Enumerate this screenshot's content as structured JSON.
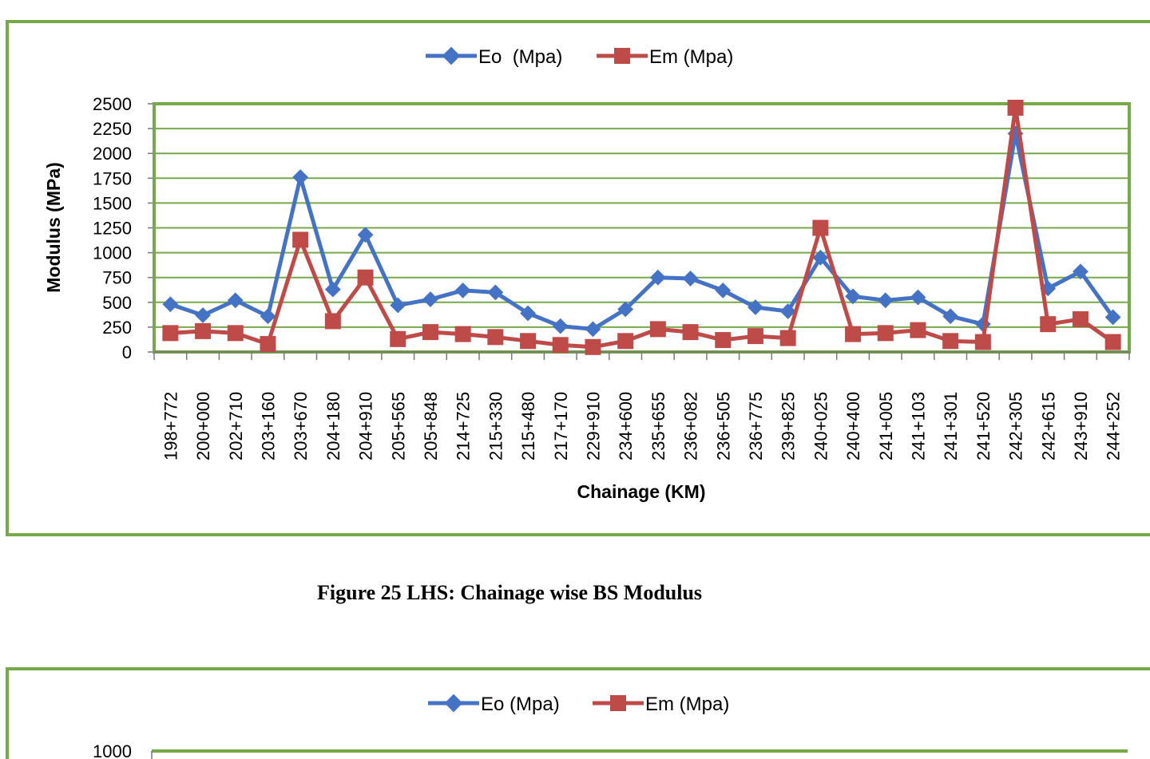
{
  "caption": "Figure 25 LHS:  Chainage wise BS Modulus",
  "colors": {
    "eo": "#4472C4",
    "em": "#BE4B48",
    "border": "#77A84A",
    "grid": "#77A84A"
  },
  "chart_data": [
    {
      "type": "line",
      "title": "",
      "xlabel": "Chainage (KM)",
      "ylabel": "Modulus (MPa)",
      "ylim": [
        0,
        2500
      ],
      "yticks": [
        0,
        250,
        500,
        750,
        1000,
        1250,
        1500,
        1750,
        2000,
        2250,
        2500
      ],
      "legend_position": "top-center",
      "grid": true,
      "categories": [
        "198+772",
        "200+000",
        "202+710",
        "203+160",
        "203+670",
        "204+180",
        "204+910",
        "205+565",
        "205+848",
        "214+725",
        "215+330",
        "215+480",
        "217+170",
        "229+910",
        "234+600",
        "235+655",
        "236+082",
        "236+505",
        "236+775",
        "239+825",
        "240+025",
        "240+400",
        "241+005",
        "241+103",
        "241+301",
        "241+520",
        "242+305",
        "242+615",
        "243+910",
        "244+252"
      ],
      "series": [
        {
          "name": "Eo  (Mpa)",
          "marker": "diamond",
          "values": [
            480,
            370,
            520,
            360,
            1760,
            630,
            1180,
            470,
            530,
            620,
            600,
            390,
            260,
            230,
            430,
            750,
            740,
            620,
            450,
            410,
            950,
            560,
            520,
            550,
            360,
            280,
            2200,
            640,
            810,
            350
          ]
        },
        {
          "name": "Em (Mpa)",
          "marker": "square",
          "values": [
            190,
            210,
            190,
            80,
            1130,
            310,
            750,
            130,
            200,
            180,
            150,
            110,
            70,
            50,
            110,
            230,
            200,
            120,
            160,
            140,
            1250,
            180,
            190,
            220,
            110,
            100,
            2460,
            280,
            330,
            100
          ]
        }
      ]
    },
    {
      "type": "line",
      "title": "",
      "ylim": [
        0,
        1000
      ],
      "yticks": [
        1000
      ],
      "legend_position": "top-center",
      "grid": true,
      "series": [
        {
          "name": "Eo (Mpa)",
          "marker": "diamond"
        },
        {
          "name": "Em (Mpa)",
          "marker": "square"
        }
      ]
    }
  ]
}
